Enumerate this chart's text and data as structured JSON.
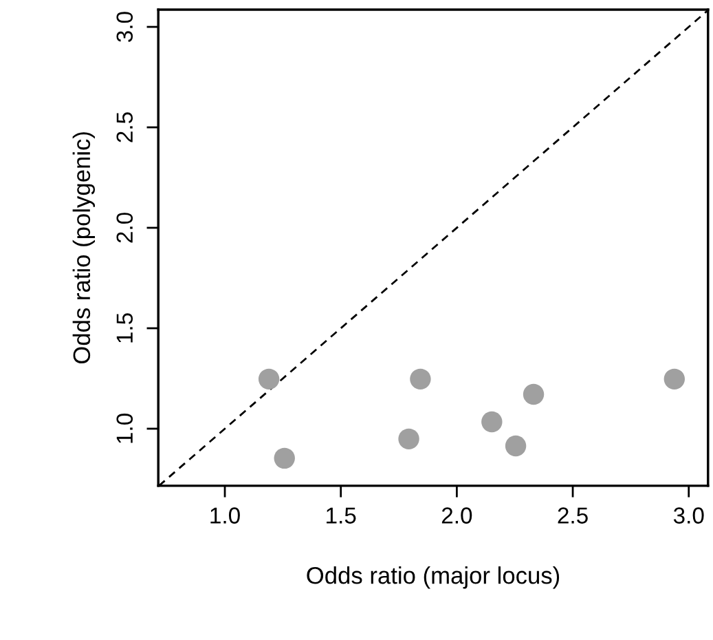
{
  "chart_data": {
    "type": "scatter",
    "xlabel": "Odds ratio (major locus)",
    "ylabel": "Odds ratio (polygenic)",
    "series": [
      {
        "color": "#a0a0a0",
        "marker": "circle",
        "x": [
          1.19,
          1.257,
          1.793,
          1.843,
          2.151,
          2.254,
          2.331,
          2.938
        ],
        "values": [
          1.247,
          0.853,
          0.949,
          1.247,
          1.034,
          0.914,
          1.171,
          1.247
        ]
      },
      {
        "type": "line",
        "color": "#000000",
        "line_style": "dashed",
        "marker": "none",
        "x": [
          0.716,
          3.083
        ],
        "values": [
          0.716,
          3.083
        ]
      }
    ],
    "xlim": [
      0.713,
      3.083
    ],
    "ylim": [
      0.716,
      3.086
    ],
    "xticks": [
      {
        "value": 1,
        "label": "1.0"
      },
      1.5,
      {
        "value": 2,
        "label": "2.0"
      },
      2.5,
      {
        "value": 3,
        "label": "3.0"
      }
    ],
    "yticks": [
      {
        "value": 1,
        "label": "1.0"
      },
      1.5,
      {
        "value": 2,
        "label": "2.0"
      },
      2.5,
      {
        "value": 3,
        "label": "3.0"
      }
    ],
    "grid": false,
    "legend": false
  }
}
